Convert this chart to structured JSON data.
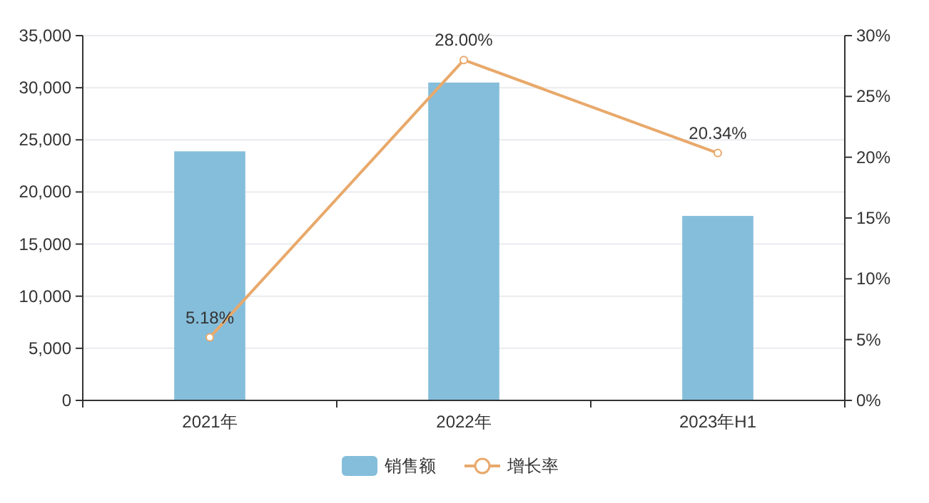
{
  "chart_data": {
    "type": "bar",
    "categories": [
      "2021年",
      "2022年",
      "2023年H1"
    ],
    "series": [
      {
        "name": "销售额",
        "color": "#85bedb",
        "values": [
          23900,
          30500,
          17700
        ]
      },
      {
        "name": "增长率",
        "type": "line",
        "axis": "y2",
        "color": "#e8a96b",
        "marker": "circle",
        "values": [
          5.18,
          28.0,
          20.34
        ],
        "value_labels": [
          "5.18%",
          "28.00%",
          "20.34%"
        ]
      }
    ],
    "ylim": [
      0,
      35000
    ],
    "yticks": [
      {
        "value": 0,
        "label": "0"
      },
      {
        "value": 5000,
        "label": "5,000"
      },
      {
        "value": 10000,
        "label": "10,000"
      },
      {
        "value": 15000,
        "label": "15,000"
      },
      {
        "value": 20000,
        "label": "20,000"
      },
      {
        "value": 25000,
        "label": "25,000"
      },
      {
        "value": 30000,
        "label": "30,000"
      },
      {
        "value": 35000,
        "label": "35,000"
      }
    ],
    "y2lim": [
      0,
      30
    ],
    "y2ticks": [
      {
        "value": 0,
        "label": "0%"
      },
      {
        "value": 5,
        "label": "5%"
      },
      {
        "value": 10,
        "label": "10%"
      },
      {
        "value": 15,
        "label": "15%"
      },
      {
        "value": 20,
        "label": "20%"
      },
      {
        "value": 25,
        "label": "25%"
      },
      {
        "value": 30,
        "label": "30%"
      }
    ],
    "grid": "y",
    "legend": "bottom"
  }
}
